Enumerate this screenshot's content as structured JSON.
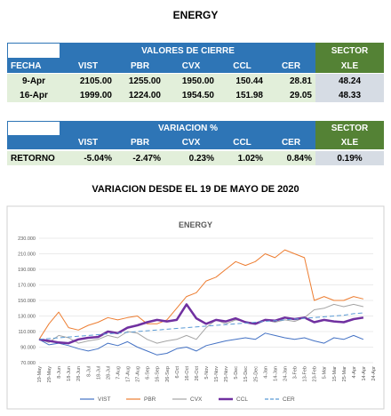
{
  "title": "ENERGY",
  "table1": {
    "group_header": "VALORES DE CIERRE",
    "sector_header": "SECTOR",
    "columns": [
      "FECHA",
      "VIST",
      "PBR",
      "CVX",
      "CCL",
      "CER",
      "XLE"
    ],
    "rows": [
      [
        "9-Apr",
        "2105.00",
        "1255.00",
        "1950.00",
        "150.44",
        "28.81",
        "48.24"
      ],
      [
        "16-Apr",
        "1999.00",
        "1224.00",
        "1954.50",
        "151.98",
        "29.05",
        "48.33"
      ]
    ]
  },
  "table2": {
    "group_header": "VARIACION %",
    "sector_header": "SECTOR",
    "columns": [
      "VIST",
      "PBR",
      "CVX",
      "CCL",
      "CER",
      "XLE"
    ],
    "rows": [
      [
        "RETORNO",
        "-5.04%",
        "-2.47%",
        "0.23%",
        "1.02%",
        "0.84%",
        "0.19%"
      ]
    ]
  },
  "subtitle": "VARIACION DESDE EL 19 DE MAYO DE 2020",
  "chart_data": {
    "type": "line",
    "title": "ENERGY",
    "categories": [
      "19-May",
      "29-May",
      "8-Jun",
      "18-Jun",
      "28-Jun",
      "8-Jul",
      "18-Jul",
      "28-Jul",
      "7-Aug",
      "17-Aug",
      "27-Aug",
      "6-Sep",
      "16-Sep",
      "26-Sep",
      "6-Oct",
      "16-Oct",
      "26-Oct",
      "5-Nov",
      "15-Nov",
      "25-Nov",
      "5-Dec",
      "15-Dec",
      "25-Dec",
      "4-Jan",
      "14-Jan",
      "24-Jan",
      "3-Feb",
      "13-Feb",
      "23-Feb",
      "5-Mar",
      "15-Mar",
      "25-Mar",
      "4-Apr",
      "14-Apr",
      "24-Apr"
    ],
    "series": [
      {
        "name": "VIST",
        "color": "#4472c4",
        "values": [
          100,
          93,
          95,
          92,
          88,
          85,
          88,
          95,
          92,
          97,
          90,
          85,
          80,
          82,
          88,
          90,
          85,
          92,
          95,
          98,
          100,
          102,
          100,
          108,
          105,
          102,
          100,
          102,
          98,
          95,
          102,
          100,
          105,
          100,
          null
        ]
      },
      {
        "name": "PBR",
        "color": "#ed7d31",
        "values": [
          100,
          120,
          135,
          115,
          112,
          118,
          122,
          128,
          125,
          128,
          130,
          120,
          120,
          125,
          140,
          155,
          160,
          175,
          180,
          190,
          200,
          195,
          200,
          210,
          205,
          215,
          210,
          205,
          150,
          155,
          150,
          150,
          155,
          152,
          null
        ]
      },
      {
        "name": "CVX",
        "color": "#a5a5a5",
        "values": [
          100,
          96,
          105,
          102,
          95,
          98,
          100,
          105,
          102,
          110,
          108,
          100,
          95,
          98,
          100,
          105,
          100,
          115,
          125,
          120,
          125,
          123,
          120,
          125,
          122,
          125,
          123,
          128,
          138,
          140,
          145,
          142,
          145,
          142,
          null
        ]
      },
      {
        "name": "CCL",
        "color": "#7030a0",
        "width": 2.5,
        "values": [
          100,
          98,
          96,
          95,
          100,
          102,
          103,
          110,
          108,
          115,
          118,
          122,
          125,
          123,
          125,
          145,
          127,
          120,
          125,
          123,
          127,
          122,
          120,
          125,
          124,
          128,
          126,
          128,
          122,
          125,
          123,
          122,
          126,
          128,
          null
        ]
      },
      {
        "name": "CER",
        "color": "#5b9bd5",
        "dashed": true,
        "values": [
          100,
          101,
          102,
          103,
          104,
          105,
          106,
          107,
          108,
          109,
          110,
          111,
          112,
          113,
          114,
          115,
          116,
          117,
          118,
          119,
          120,
          121,
          122,
          123,
          124,
          125,
          126,
          127,
          128,
          129,
          130,
          131,
          133,
          134,
          null
        ]
      }
    ],
    "ylim": [
      70,
      230
    ],
    "yticks": [
      {
        "value": 70,
        "label": "70.000"
      },
      {
        "value": 90,
        "label": "90.000"
      },
      {
        "value": 110,
        "label": "110.000"
      },
      {
        "value": 130,
        "label": "130.000"
      },
      {
        "value": 150,
        "label": "150.000"
      },
      {
        "value": 170,
        "label": "170.000"
      },
      {
        "value": 190,
        "label": "190.000"
      },
      {
        "value": 210,
        "label": "210.000"
      },
      {
        "value": 230,
        "label": "230.000"
      }
    ],
    "grid": true,
    "legend": "bottom"
  }
}
